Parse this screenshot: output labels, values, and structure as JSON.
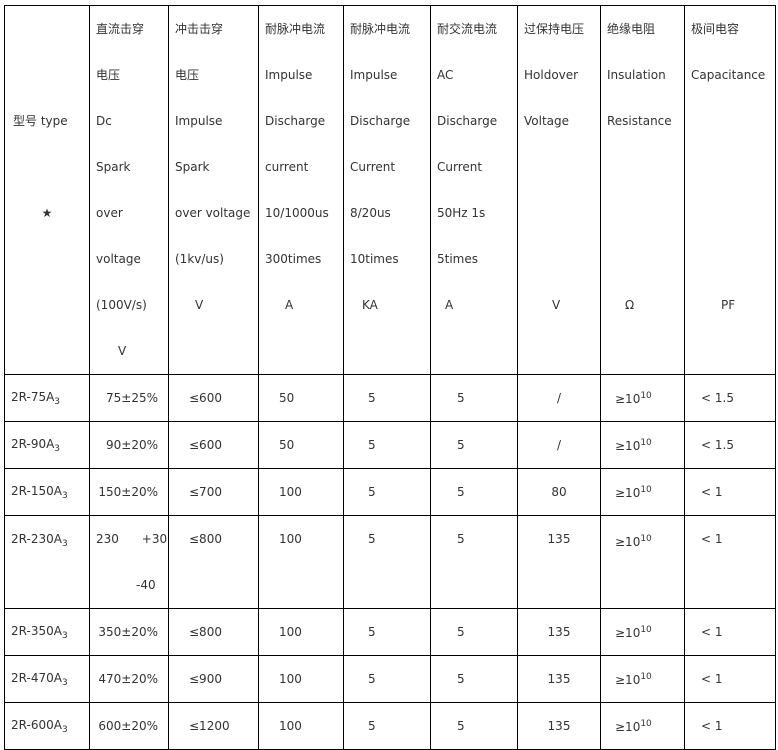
{
  "header": {
    "type": [
      "",
      "",
      "型号  type",
      "",
      "★"
    ],
    "columns": [
      {
        "lines": [
          "直流击穿",
          "电压",
          "Dc",
          "Spark",
          "over",
          "voltage",
          "(100V/s)"
        ],
        "unit": "V"
      },
      {
        "lines": [
          "冲击击穿",
          "电压",
          "Impulse",
          "Spark",
          "over voltage",
          "(1kv/us)"
        ],
        "unit": "V"
      },
      {
        "lines": [
          "耐脉冲电流",
          "Impulse",
          "Discharge",
          "current",
          "10/1000us",
          "300times"
        ],
        "unit": "A"
      },
      {
        "lines": [
          "耐脉冲电流",
          " Impulse",
          "Discharge",
          "Current",
          "8/20us",
          "10times"
        ],
        "unit": "KA"
      },
      {
        "lines": [
          "耐交流电流",
          "AC",
          "Discharge",
          "Current",
          "50Hz  1s",
          "5times"
        ],
        "unit": "A"
      },
      {
        "lines": [
          "过保持电压",
          "Holdover",
          "Voltage"
        ],
        "unit": "V"
      },
      {
        "lines": [
          "绝缘电阻",
          "Insulation",
          "Resistance"
        ],
        "unit": "Ω"
      },
      {
        "lines": [
          "极间电容",
          "Capacitance"
        ],
        "unit": "PF"
      }
    ]
  },
  "rows": [
    {
      "model": "2R-75A",
      "sub": "3",
      "dc": "75±25%",
      "impulse_v": "≤600",
      "imp_a": "50",
      "imp_ka": "5",
      "ac": "5",
      "holdover": "/",
      "insulation": "≥10",
      "ins_exp": "10",
      "cap": "< 1.5"
    },
    {
      "model": "2R-90A",
      "sub": "3",
      "dc": "90±20%",
      "impulse_v": "≤600",
      "imp_a": "50",
      "imp_ka": "5",
      "ac": "5",
      "holdover": "/",
      "insulation": "≥10",
      "ins_exp": "10",
      "cap": "< 1.5"
    },
    {
      "model": "2R-150A",
      "sub": "3",
      "dc": "150±20%",
      "impulse_v": "≤700",
      "imp_a": "100",
      "imp_ka": "5",
      "ac": "5",
      "holdover": "80",
      "insulation": "≥10",
      "ins_exp": "10",
      "cap": "< 1"
    },
    {
      "model": "2R-230A",
      "sub": "3",
      "dc": "230      +30",
      "dc2": "-40",
      "impulse_v": "≤800",
      "imp_a": "100",
      "imp_ka": "5",
      "ac": "5",
      "holdover": "135",
      "insulation": "≥10",
      "ins_exp": "10",
      "cap": "< 1"
    },
    {
      "model": "2R-350A",
      "sub": "3",
      "dc": "350±20%",
      "impulse_v": "≤800",
      "imp_a": "100",
      "imp_ka": "5",
      "ac": "5",
      "holdover": "135",
      "insulation": "≥10",
      "ins_exp": "10",
      "cap": "< 1"
    },
    {
      "model": "2R-470A",
      "sub": "3",
      "dc": "470±20%",
      "impulse_v": "≤900",
      "imp_a": "100",
      "imp_ka": "5",
      "ac": "5",
      "holdover": "135",
      "insulation": "≥10",
      "ins_exp": "10",
      "cap": "< 1"
    },
    {
      "model": "2R-600A",
      "sub": "3",
      "dc": "600±20%",
      "impulse_v": "≤1200",
      "imp_a": "100",
      "imp_ka": "5",
      "ac": "5",
      "holdover": "135",
      "insulation": "≥10",
      "ins_exp": "10",
      "cap": "< 1"
    }
  ]
}
